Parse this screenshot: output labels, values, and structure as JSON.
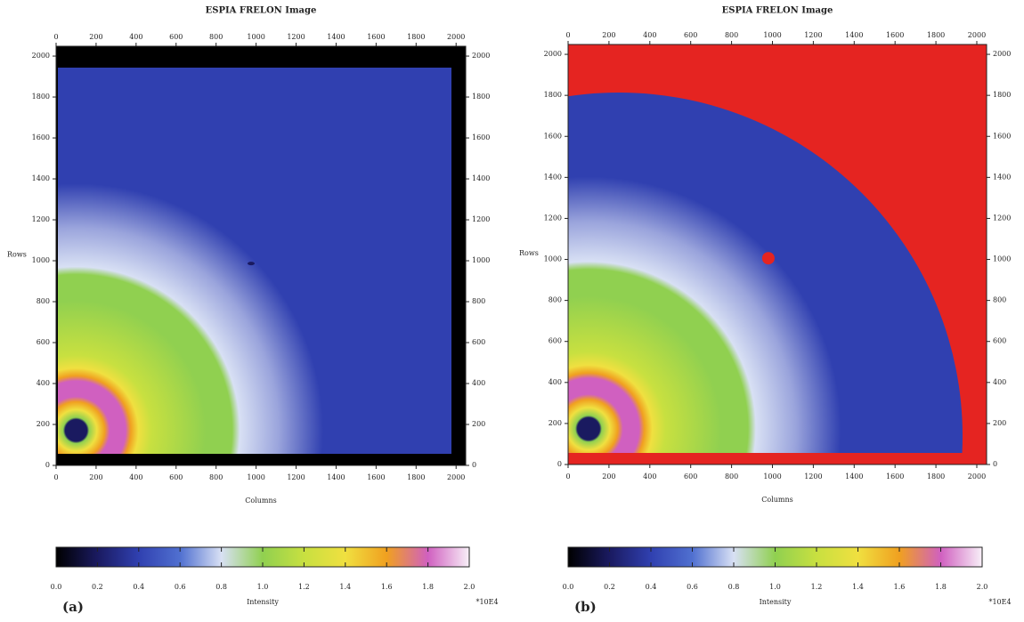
{
  "chart_data": [
    {
      "type": "heatmap",
      "title": "ESPIA FRELON Image",
      "panel_label": "(a)",
      "xlabel": "Columns",
      "ylabel": "Rows",
      "xlim": [
        0,
        2048
      ],
      "ylim": [
        0,
        2048
      ],
      "xticks": [
        0,
        200,
        400,
        600,
        800,
        1000,
        1200,
        1400,
        1600,
        1800,
        2000
      ],
      "yticks": [
        0,
        200,
        400,
        600,
        800,
        1000,
        1200,
        1400,
        1600,
        1800,
        2000
      ],
      "background_color": "#000000",
      "colorbar": {
        "label": "Intensity",
        "multiplier": "*10E4",
        "lim": [
          0,
          2
        ],
        "ticks": [
          {
            "value": 0,
            "label": "0.0"
          },
          0.2,
          0.4,
          0.6,
          0.8,
          {
            "value": 1,
            "label": "1.0"
          },
          1.2,
          1.4,
          1.6,
          1.8,
          {
            "value": 2,
            "label": "2.0"
          }
        ],
        "colors": [
          "#000000",
          "#1a1a60",
          "#3040b0",
          "#5070d0",
          "#d8e0f4",
          "#90d050",
          "#c8e040",
          "#f0e040",
          "#f0a020",
          "#d060c0",
          "#f8f0f8"
        ]
      }
    },
    {
      "type": "heatmap",
      "title": "ESPIA FRELON Image",
      "panel_label": "(b)",
      "xlabel": "Columns",
      "ylabel": "Rows",
      "xlim": [
        0,
        2048
      ],
      "ylim": [
        0,
        2048
      ],
      "xticks": [
        0,
        200,
        400,
        600,
        800,
        1000,
        1200,
        1400,
        1600,
        1800,
        2000
      ],
      "yticks": [
        0,
        200,
        400,
        600,
        800,
        1000,
        1200,
        1400,
        1600,
        1800,
        2000
      ],
      "background_color": "#e52421",
      "colorbar": {
        "label": "Intensity",
        "multiplier": "*10E4",
        "lim": [
          0,
          2
        ],
        "ticks": [
          {
            "value": 0,
            "label": "0.0"
          },
          0.2,
          0.4,
          0.6,
          0.8,
          {
            "value": 1,
            "label": "1.0"
          },
          1.2,
          1.4,
          1.6,
          1.8,
          {
            "value": 2,
            "label": "2.0"
          }
        ],
        "colors": [
          "#000000",
          "#1a1a60",
          "#3040b0",
          "#5070d0",
          "#d8e0f4",
          "#90d050",
          "#c8e040",
          "#f0e040",
          "#f0a020",
          "#d060c0",
          "#f8f0f8"
        ]
      }
    }
  ]
}
